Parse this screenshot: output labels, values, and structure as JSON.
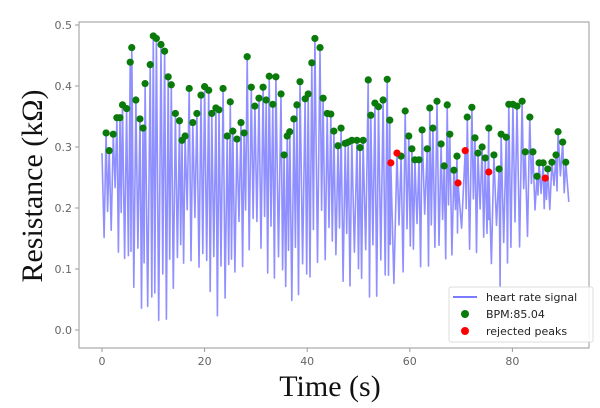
{
  "chart_data": {
    "type": "line",
    "title": "",
    "xlabel": "Time (s)",
    "ylabel": "Resistance (kΩ)",
    "xlim": [
      -4.5,
      95
    ],
    "ylim": [
      -0.027,
      0.51
    ],
    "xticks": [
      0,
      20,
      40,
      60,
      80
    ],
    "yticks": [
      0.0,
      0.1,
      0.2,
      0.3,
      0.4,
      0.5
    ],
    "ytick_labels": [
      "0.0",
      "0.1",
      "0.2",
      "0.3",
      "0.4",
      "0.5"
    ],
    "xtick_labels": [
      "0",
      "20",
      "40",
      "60",
      "80"
    ],
    "grid": false,
    "legend": {
      "placement": "lower-right",
      "entries": [
        {
          "label": "heart rate signal",
          "marker": "line",
          "color": "#7b7bff"
        },
        {
          "label": "BPM:85.04",
          "marker": "dot",
          "color": "#0a7a0a"
        },
        {
          "label": "rejected peaks",
          "marker": "dot",
          "color": "#ff0000"
        }
      ]
    },
    "series": [
      {
        "name": "heart rate signal",
        "color": "#7b7bff",
        "start": [
          0,
          0.29
        ],
        "end": [
          91,
          0.21
        ],
        "trough_envelope": [
          [
            0.2,
            0.1
          ],
          [
            2,
            0.16
          ],
          [
            5,
            0.077
          ],
          [
            10,
            0.0
          ],
          [
            12,
            0.005
          ],
          [
            17,
            0.12
          ],
          [
            20,
            0.065
          ],
          [
            23,
            0.015
          ],
          [
            27,
            0.1
          ],
          [
            30,
            0.13
          ],
          [
            35,
            0.05
          ],
          [
            40,
            0.045
          ],
          [
            42,
            0.11
          ],
          [
            45.4,
            0.1
          ],
          [
            48,
            0.065
          ],
          [
            51,
            0.055
          ],
          [
            54.8,
            0.045
          ],
          [
            57,
            0.075
          ],
          [
            60,
            0.1
          ],
          [
            65,
            0.1
          ],
          [
            70,
            0.13
          ],
          [
            75,
            0.12
          ],
          [
            78,
            0.06
          ],
          [
            82,
            0.14
          ],
          [
            86,
            0.19
          ],
          [
            90,
            0.21
          ]
        ]
      },
      {
        "name": "BPM:85.04",
        "color": "#0a7a0a",
        "points": [
          [
            0.8,
            0.323
          ],
          [
            1.4,
            0.294
          ],
          [
            2.2,
            0.321
          ],
          [
            2.9,
            0.348
          ],
          [
            3.5,
            0.348
          ],
          [
            4.0,
            0.369
          ],
          [
            4.8,
            0.363
          ],
          [
            5.5,
            0.439
          ],
          [
            5.8,
            0.463
          ],
          [
            6.6,
            0.377
          ],
          [
            7.4,
            0.346
          ],
          [
            8.0,
            0.331
          ],
          [
            8.4,
            0.404
          ],
          [
            9.4,
            0.435
          ],
          [
            10.0,
            0.482
          ],
          [
            10.6,
            0.478
          ],
          [
            11.5,
            0.468
          ],
          [
            12.2,
            0.457
          ],
          [
            12.9,
            0.415
          ],
          [
            13.5,
            0.402
          ],
          [
            14.3,
            0.355
          ],
          [
            15.1,
            0.343
          ],
          [
            15.6,
            0.311
          ],
          [
            16.2,
            0.318
          ],
          [
            17.0,
            0.396
          ],
          [
            17.7,
            0.34
          ],
          [
            18.5,
            0.355
          ],
          [
            19.3,
            0.385
          ],
          [
            20.0,
            0.399
          ],
          [
            20.8,
            0.393
          ],
          [
            21.4,
            0.355
          ],
          [
            22.2,
            0.364
          ],
          [
            22.8,
            0.361
          ],
          [
            23.6,
            0.396
          ],
          [
            24.4,
            0.318
          ],
          [
            25.0,
            0.374
          ],
          [
            25.5,
            0.326
          ],
          [
            26.3,
            0.313
          ],
          [
            27.1,
            0.34
          ],
          [
            27.7,
            0.323
          ],
          [
            28.3,
            0.448
          ],
          [
            29.1,
            0.398
          ],
          [
            29.8,
            0.367
          ],
          [
            30.6,
            0.38
          ],
          [
            31.4,
            0.398
          ],
          [
            32.0,
            0.377
          ],
          [
            32.6,
            0.416
          ],
          [
            33.3,
            0.37
          ],
          [
            33.9,
            0.415
          ],
          [
            34.9,
            0.387
          ],
          [
            35.5,
            0.287
          ],
          [
            36.1,
            0.318
          ],
          [
            36.6,
            0.325
          ],
          [
            37.4,
            0.346
          ],
          [
            38.0,
            0.369
          ],
          [
            38.6,
            0.407
          ],
          [
            39.6,
            0.379
          ],
          [
            40.2,
            0.387
          ],
          [
            40.9,
            0.438
          ],
          [
            41.5,
            0.478
          ],
          [
            42.5,
            0.463
          ],
          [
            43.1,
            0.38
          ],
          [
            43.9,
            0.355
          ],
          [
            44.6,
            0.354
          ],
          [
            45.2,
            0.326
          ],
          [
            46.0,
            0.302
          ],
          [
            46.6,
            0.331
          ],
          [
            47.4,
            0.306
          ],
          [
            48.0,
            0.308
          ],
          [
            48.7,
            0.311
          ],
          [
            49.7,
            0.311
          ],
          [
            50.3,
            0.299
          ],
          [
            50.9,
            0.311
          ],
          [
            51.9,
            0.41
          ],
          [
            52.4,
            0.352
          ],
          [
            53.2,
            0.372
          ],
          [
            53.9,
            0.366
          ],
          [
            54.8,
            0.377
          ],
          [
            55.6,
            0.411
          ],
          [
            56.1,
            0.344
          ],
          [
            58.3,
            0.285
          ],
          [
            59.1,
            0.359
          ],
          [
            59.8,
            0.318
          ],
          [
            60.4,
            0.297
          ],
          [
            61.0,
            0.279
          ],
          [
            61.8,
            0.279
          ],
          [
            62.4,
            0.328
          ],
          [
            63.4,
            0.297
          ],
          [
            63.9,
            0.364
          ],
          [
            64.5,
            0.331
          ],
          [
            65.3,
            0.375
          ],
          [
            66.1,
            0.305
          ],
          [
            66.7,
            0.269
          ],
          [
            67.3,
            0.369
          ],
          [
            67.8,
            0.321
          ],
          [
            68.6,
            0.262
          ],
          [
            69.2,
            0.285
          ],
          [
            71.2,
            0.349
          ],
          [
            72.1,
            0.365
          ],
          [
            72.7,
            0.315
          ],
          [
            73.3,
            0.29
          ],
          [
            74.1,
            0.3
          ],
          [
            74.7,
            0.282
          ],
          [
            75.4,
            0.331
          ],
          [
            76.4,
            0.287
          ],
          [
            77.4,
            0.264
          ],
          [
            77.8,
            0.321
          ],
          [
            78.8,
            0.316
          ],
          [
            79.3,
            0.37
          ],
          [
            80.1,
            0.37
          ],
          [
            80.9,
            0.367
          ],
          [
            81.9,
            0.375
          ],
          [
            82.5,
            0.292
          ],
          [
            83.4,
            0.349
          ],
          [
            84.0,
            0.292
          ],
          [
            84.8,
            0.252
          ],
          [
            85.2,
            0.274
          ],
          [
            86.0,
            0.274
          ],
          [
            86.9,
            0.264
          ],
          [
            87.7,
            0.275
          ],
          [
            88.5,
            0.287
          ],
          [
            88.9,
            0.325
          ],
          [
            89.8,
            0.308
          ],
          [
            90.4,
            0.275
          ]
        ]
      },
      {
        "name": "rejected peaks",
        "color": "#ff0000",
        "points": [
          [
            56.3,
            0.274
          ],
          [
            57.5,
            0.29
          ],
          [
            69.4,
            0.241
          ],
          [
            70.8,
            0.294
          ],
          [
            75.4,
            0.259
          ],
          [
            86.4,
            0.249
          ]
        ]
      }
    ]
  }
}
